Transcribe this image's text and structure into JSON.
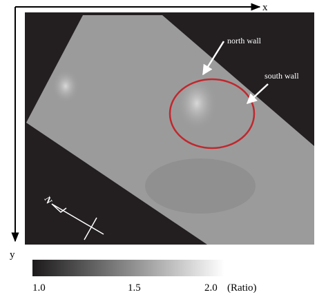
{
  "axes": {
    "x_label": "x",
    "y_label": "y"
  },
  "annotations": {
    "north_wall": "north wall",
    "south_wall": "south wall",
    "compass": "N"
  },
  "colorbar": {
    "ticks": [
      "1.0",
      "1.5",
      "2.0"
    ],
    "unit": "(Ratio)"
  }
}
